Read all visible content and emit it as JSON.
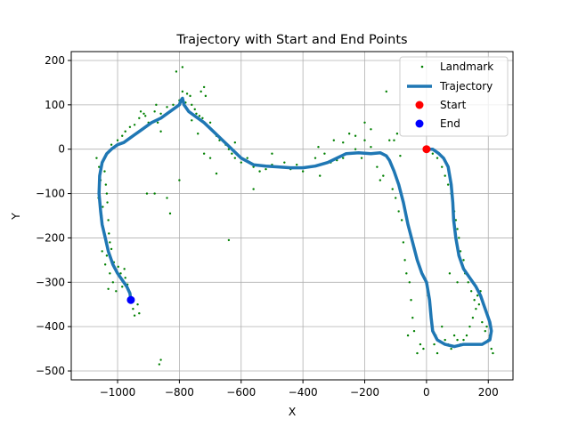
{
  "chart_data": {
    "type": "scatter",
    "title": "Trajectory with Start and End Points",
    "xlabel": "X",
    "ylabel": "Y",
    "xlim": [
      -1150,
      280
    ],
    "ylim": [
      -520,
      220
    ],
    "x_ticks": [
      -1000,
      -800,
      -600,
      -400,
      -200,
      0,
      200
    ],
    "y_ticks": [
      200,
      100,
      0,
      -100,
      -200,
      -300,
      -400,
      -500
    ],
    "x_tick_labels": [
      "−1000",
      "−800",
      "−600",
      "−400",
      "−200",
      "0",
      "200"
    ],
    "y_tick_labels": [
      "200",
      "100",
      "0",
      "−100",
      "−200",
      "−300",
      "−400",
      "−500"
    ],
    "grid": true,
    "legend_position": "top-right",
    "colors": {
      "landmark": "#008000",
      "trajectory": "#1f77b4",
      "start": "#ff0000",
      "end": "#0000ff",
      "grid": "#b0b0b0"
    },
    "series": [
      {
        "name": "Landmark",
        "kind": "scatter-small",
        "points": [
          [
            -1068,
            -20
          ],
          [
            -1060,
            -40
          ],
          [
            -1055,
            -70
          ],
          [
            -1062,
            -110
          ],
          [
            -1048,
            -130
          ],
          [
            -1052,
            -150
          ],
          [
            -1045,
            -180
          ],
          [
            -1040,
            -200
          ],
          [
            -1050,
            -230
          ],
          [
            -1035,
            -240
          ],
          [
            -1040,
            -260
          ],
          [
            -1025,
            -280
          ],
          [
            -1015,
            -300
          ],
          [
            -1030,
            -315
          ],
          [
            -1005,
            -320
          ],
          [
            -985,
            -310
          ],
          [
            -975,
            -290
          ],
          [
            -968,
            -305
          ],
          [
            -960,
            -330
          ],
          [
            -955,
            -345
          ],
          [
            -950,
            -360
          ],
          [
            -935,
            -350
          ],
          [
            -930,
            -370
          ],
          [
            -945,
            -375
          ],
          [
            -1042,
            -50
          ],
          [
            -1038,
            -80
          ],
          [
            -1035,
            -100
          ],
          [
            -1033,
            -120
          ],
          [
            -1030,
            -160
          ],
          [
            -1028,
            -190
          ],
          [
            -1025,
            -210
          ],
          [
            -1020,
            -225
          ],
          [
            -1012,
            -255
          ],
          [
            -998,
            -265
          ],
          [
            -990,
            -280
          ],
          [
            -978,
            -270
          ],
          [
            -1020,
            10
          ],
          [
            -1000,
            20
          ],
          [
            -985,
            30
          ],
          [
            -975,
            40
          ],
          [
            -960,
            50
          ],
          [
            -945,
            55
          ],
          [
            -930,
            70
          ],
          [
            -915,
            80
          ],
          [
            -900,
            60
          ],
          [
            -880,
            85
          ],
          [
            -860,
            80
          ],
          [
            -840,
            95
          ],
          [
            -820,
            100
          ],
          [
            -800,
            110
          ],
          [
            -790,
            130
          ],
          [
            -780,
            105
          ],
          [
            -775,
            125
          ],
          [
            -765,
            120
          ],
          [
            -760,
            100
          ],
          [
            -750,
            90
          ],
          [
            -745,
            80
          ],
          [
            -735,
            75
          ],
          [
            -725,
            70
          ],
          [
            -720,
            140
          ],
          [
            -730,
            130
          ],
          [
            -715,
            120
          ],
          [
            -700,
            60
          ],
          [
            -690,
            40
          ],
          [
            -680,
            30
          ],
          [
            -670,
            20
          ],
          [
            -650,
            10
          ],
          [
            -640,
            0
          ],
          [
            -630,
            -10
          ],
          [
            -620,
            -20
          ],
          [
            -600,
            -30
          ],
          [
            -580,
            -20
          ],
          [
            -560,
            -40
          ],
          [
            -540,
            -50
          ],
          [
            -520,
            -45
          ],
          [
            -500,
            -35
          ],
          [
            -480,
            -40
          ],
          [
            -460,
            -30
          ],
          [
            -440,
            -45
          ],
          [
            -420,
            -35
          ],
          [
            -400,
            -50
          ],
          [
            -380,
            -40
          ],
          [
            -360,
            -20
          ],
          [
            -350,
            5
          ],
          [
            -330,
            -10
          ],
          [
            -310,
            -30
          ],
          [
            -290,
            -25
          ],
          [
            -270,
            -20
          ],
          [
            -250,
            -10
          ],
          [
            -230,
            0
          ],
          [
            -210,
            -20
          ],
          [
            -200,
            20
          ],
          [
            -180,
            5
          ],
          [
            -160,
            -40
          ],
          [
            -150,
            -70
          ],
          [
            -140,
            -60
          ],
          [
            -130,
            130
          ],
          [
            -120,
            20
          ],
          [
            -110,
            -90
          ],
          [
            -100,
            -110
          ],
          [
            -90,
            -140
          ],
          [
            -80,
            -160
          ],
          [
            -75,
            -210
          ],
          [
            -70,
            -250
          ],
          [
            -65,
            -280
          ],
          [
            -60,
            -420
          ],
          [
            -55,
            -300
          ],
          [
            -50,
            -340
          ],
          [
            -45,
            -380
          ],
          [
            -40,
            -410
          ],
          [
            -30,
            -460
          ],
          [
            -20,
            -440
          ],
          [
            -10,
            -450
          ],
          [
            5,
            -330
          ],
          [
            10,
            -350
          ],
          [
            15,
            -380
          ],
          [
            20,
            -410
          ],
          [
            25,
            -440
          ],
          [
            30,
            -420
          ],
          [
            35,
            -460
          ],
          [
            50,
            -400
          ],
          [
            60,
            -430
          ],
          [
            70,
            -440
          ],
          [
            80,
            -450
          ],
          [
            90,
            -420
          ],
          [
            100,
            -430
          ],
          [
            110,
            -440
          ],
          [
            120,
            -430
          ],
          [
            130,
            -420
          ],
          [
            140,
            -400
          ],
          [
            150,
            -380
          ],
          [
            160,
            -360
          ],
          [
            170,
            -350
          ],
          [
            180,
            -390
          ],
          [
            190,
            -410
          ],
          [
            200,
            -430
          ],
          [
            210,
            -450
          ],
          [
            215,
            -460
          ],
          [
            205,
            -420
          ],
          [
            195,
            -400
          ],
          [
            20,
            -10
          ],
          [
            35,
            -20
          ],
          [
            50,
            -40
          ],
          [
            60,
            -60
          ],
          [
            70,
            -80
          ],
          [
            80,
            -100
          ],
          [
            85,
            -120
          ],
          [
            90,
            -140
          ],
          [
            95,
            -160
          ],
          [
            100,
            -180
          ],
          [
            105,
            -200
          ],
          [
            110,
            -230
          ],
          [
            115,
            -260
          ],
          [
            125,
            -280
          ],
          [
            135,
            -300
          ],
          [
            145,
            -320
          ],
          [
            155,
            -340
          ],
          [
            165,
            -330
          ],
          [
            175,
            -320
          ],
          [
            120,
            -250
          ],
          [
            100,
            -300
          ],
          [
            75,
            -280
          ],
          [
            -200,
            60
          ],
          [
            -180,
            45
          ],
          [
            -875,
            100
          ],
          [
            -870,
            60
          ],
          [
            -860,
            40
          ],
          [
            -880,
            -100
          ],
          [
            -840,
            -110
          ],
          [
            -830,
            -145
          ],
          [
            -800,
            -70
          ],
          [
            -790,
            185
          ],
          [
            -810,
            175
          ],
          [
            -760,
            65
          ],
          [
            -740,
            35
          ],
          [
            -700,
            -20
          ],
          [
            -720,
            -10
          ],
          [
            -680,
            -55
          ],
          [
            -640,
            -205
          ],
          [
            -620,
            15
          ],
          [
            -560,
            -90
          ],
          [
            -500,
            -10
          ],
          [
            -345,
            -60
          ],
          [
            -300,
            20
          ],
          [
            -270,
            15
          ],
          [
            -250,
            35
          ],
          [
            -230,
            30
          ],
          [
            -105,
            20
          ],
          [
            -95,
            35
          ],
          [
            -85,
            -15
          ],
          [
            -865,
            -485
          ],
          [
            -860,
            -475
          ],
          [
            -905,
            -100
          ],
          [
            -910,
            75
          ],
          [
            -925,
            85
          ]
        ]
      },
      {
        "name": "Trajectory",
        "kind": "line",
        "points": [
          [
            -5,
            0
          ],
          [
            20,
            0
          ],
          [
            40,
            -10
          ],
          [
            55,
            -20
          ],
          [
            70,
            -40
          ],
          [
            80,
            -80
          ],
          [
            85,
            -120
          ],
          [
            88,
            -160
          ],
          [
            95,
            -200
          ],
          [
            105,
            -240
          ],
          [
            120,
            -270
          ],
          [
            140,
            -290
          ],
          [
            160,
            -310
          ],
          [
            175,
            -330
          ],
          [
            185,
            -350
          ],
          [
            195,
            -370
          ],
          [
            205,
            -390
          ],
          [
            210,
            -410
          ],
          [
            205,
            -430
          ],
          [
            180,
            -440
          ],
          [
            150,
            -440
          ],
          [
            120,
            -440
          ],
          [
            90,
            -445
          ],
          [
            60,
            -440
          ],
          [
            35,
            -430
          ],
          [
            20,
            -410
          ],
          [
            15,
            -380
          ],
          [
            10,
            -340
          ],
          [
            0,
            -300
          ],
          [
            -15,
            -280
          ],
          [
            -30,
            -250
          ],
          [
            -45,
            -210
          ],
          [
            -60,
            -170
          ],
          [
            -75,
            -120
          ],
          [
            -90,
            -80
          ],
          [
            -105,
            -50
          ],
          [
            -120,
            -25
          ],
          [
            -130,
            -15
          ],
          [
            -150,
            -8
          ],
          [
            -180,
            -10
          ],
          [
            -220,
            -8
          ],
          [
            -260,
            -10
          ],
          [
            -290,
            -20
          ],
          [
            -320,
            -30
          ],
          [
            -360,
            -38
          ],
          [
            -400,
            -42
          ],
          [
            -440,
            -42
          ],
          [
            -480,
            -40
          ],
          [
            -520,
            -38
          ],
          [
            -560,
            -35
          ],
          [
            -600,
            -20
          ],
          [
            -630,
            0
          ],
          [
            -660,
            20
          ],
          [
            -690,
            40
          ],
          [
            -720,
            60
          ],
          [
            -750,
            75
          ],
          [
            -770,
            85
          ],
          [
            -785,
            100
          ],
          [
            -790,
            115
          ],
          [
            -795,
            110
          ],
          [
            -800,
            100
          ],
          [
            -830,
            85
          ],
          [
            -860,
            70
          ],
          [
            -890,
            60
          ],
          [
            -920,
            45
          ],
          [
            -950,
            30
          ],
          [
            -980,
            15
          ],
          [
            -1000,
            10
          ],
          [
            -1020,
            0
          ],
          [
            -1035,
            -10
          ],
          [
            -1050,
            -30
          ],
          [
            -1058,
            -60
          ],
          [
            -1060,
            -100
          ],
          [
            -1055,
            -140
          ],
          [
            -1050,
            -170
          ],
          [
            -1040,
            -200
          ],
          [
            -1030,
            -230
          ],
          [
            -1015,
            -260
          ],
          [
            -1000,
            -280
          ],
          [
            -985,
            -295
          ],
          [
            -970,
            -310
          ],
          [
            -960,
            -325
          ],
          [
            -957,
            -340
          ]
        ]
      },
      {
        "name": "Start",
        "kind": "marker",
        "points": [
          [
            0,
            0
          ]
        ]
      },
      {
        "name": "End",
        "kind": "marker",
        "points": [
          [
            -957,
            -340
          ]
        ]
      }
    ]
  }
}
